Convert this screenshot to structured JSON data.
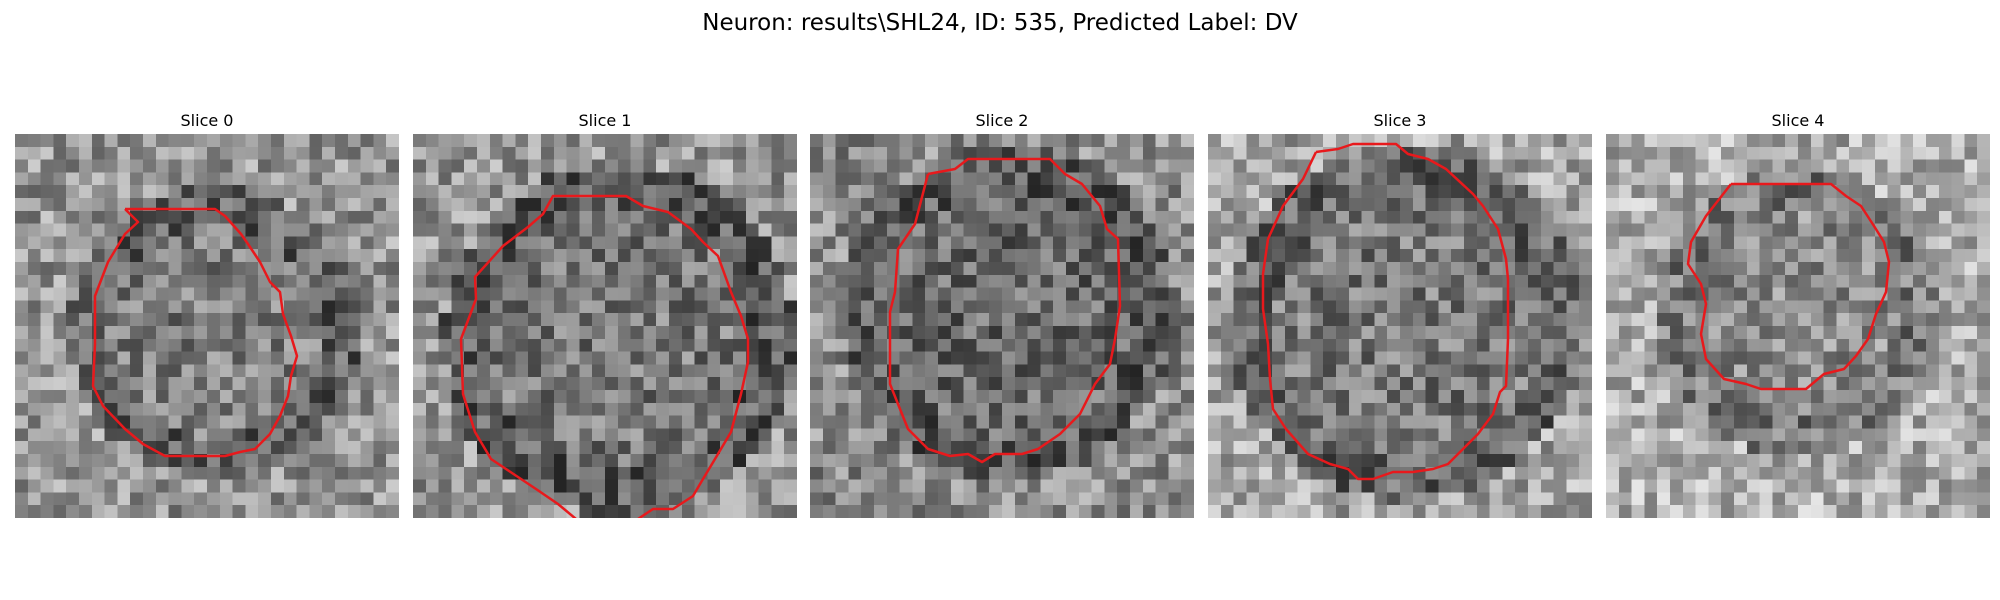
{
  "figure": {
    "suptitle": "Neuron: results\\SHL24, ID: 535, Predicted Label: DV",
    "contour_color": "#e8191c",
    "colormap": "gray"
  },
  "slices": [
    {
      "title": "Slice 0"
    },
    {
      "title": "Slice 1"
    },
    {
      "title": "Slice 2"
    },
    {
      "title": "Slice 3"
    },
    {
      "title": "Slice 4"
    }
  ]
}
